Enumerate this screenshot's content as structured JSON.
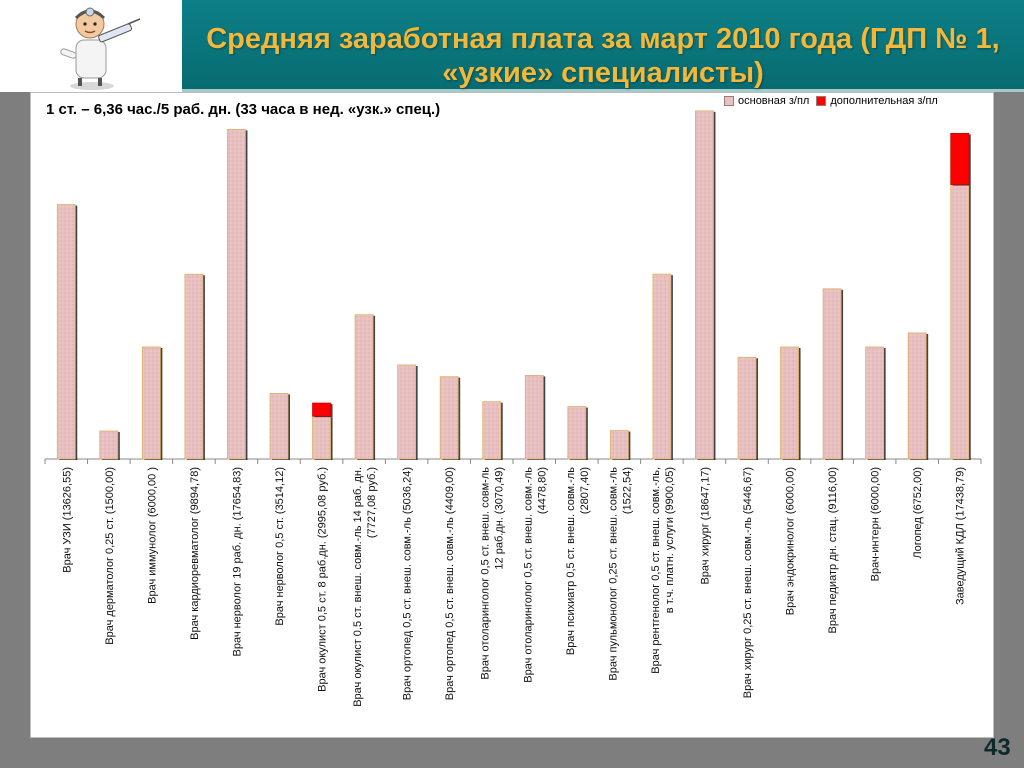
{
  "header": {
    "title_line1": "Средняя заработная плата за март 2010 года (ГДП № 1,",
    "title_line2": "«узкие» специалисты)"
  },
  "page_number": "43",
  "colors": {
    "header_bg": "#0d7f86",
    "title_text": "#f3b83a",
    "basic_bar": "#e8c0c0",
    "extra_bar": "#ff0000"
  },
  "icons": {
    "logo": "doctor-syringe-icon"
  },
  "chart_data": {
    "type": "bar",
    "stacked": true,
    "title": "",
    "subtitle": "1 ст. – 6,36 час./5 раб. дн.  (33 часа в нед. «узк.» спец.)",
    "legend": {
      "position": "top-right",
      "entries": [
        "основная з/пл",
        "дополнительная з/пл"
      ]
    },
    "ylim": [
      0,
      18800
    ],
    "grid": false,
    "categories": [
      [
        "Врач УЗИ (13626,55)"
      ],
      [
        "Врач дерматолог 0,25 ст. (1500,00)"
      ],
      [
        "Врач иммунолог (6000,00 )"
      ],
      [
        "Врач кардиоревматолог (9894,78)"
      ],
      [
        "Врач нерволог 19 раб. дн. (17654,83)"
      ],
      [
        "Врач нерволог 0,5 ст. (3514,12)"
      ],
      [
        "Врач окулист 0,5 ст. 8 раб.дн. (2995,08 руб.)"
      ],
      [
        "Врач окулист 0,5 ст. внеш. совм.-ль 14 раб. дн.",
        "(7727,08 руб.)"
      ],
      [
        "Врач ортопед 0,5 ст. внеш. совм.-ль (5036,24)"
      ],
      [
        "Врач ортопед 0,5 ст. внеш. совм.-ль (4409,00)"
      ],
      [
        "Врач отоларинголог 0,5 ст. внеш. совм-ль",
        "12 раб.дн. (3070,49)"
      ],
      [
        "Врач отоларинголог 0,5 ст. внеш. совм.-ль",
        "(4478,80)"
      ],
      [
        "Врач психиатр 0,5 ст. внеш. совм.-ль",
        "(2807,40)"
      ],
      [
        "Врач пульмонолог 0,25 ст. внеш. совм.-ль",
        "(1522,54)"
      ],
      [
        "Врач рентгенолог 0,5 ст. внеш. совм.-ль,",
        "в т.ч. платн. услуги (9900,05)"
      ],
      [
        "Врач хирург (18647,17)"
      ],
      [
        "Врач хирург 0,25 ст. внеш. совм.-ль (5446,67)"
      ],
      [
        "Врач эндокринолог (6000,00)"
      ],
      [
        "Врач педиатр дн. стац. (9116,00)"
      ],
      [
        "Врач-интерн (6000,00)"
      ],
      [
        "Логопед (6752,00)"
      ],
      [
        "Заведущий КДЛ (17438,79)"
      ]
    ],
    "series": [
      {
        "name": "основная з/пл",
        "color": "#e8c0c0",
        "values": [
          13626.55,
          1500.0,
          6000.0,
          9894.78,
          17654.83,
          3514.12,
          2295.08,
          7727.08,
          5036.24,
          4409.0,
          3070.49,
          4478.8,
          2807.4,
          1522.54,
          9900.05,
          18647.17,
          5446.67,
          6000.0,
          9116.0,
          6000.0,
          6752.0,
          14700.0
        ]
      },
      {
        "name": "дополнительная з/пл",
        "color": "#ff0000",
        "values": [
          0,
          0,
          0,
          0,
          0,
          0,
          700.0,
          0,
          0,
          0,
          0,
          0,
          0,
          0,
          0,
          0,
          0,
          0,
          0,
          0,
          0,
          2738.79
        ]
      }
    ]
  }
}
